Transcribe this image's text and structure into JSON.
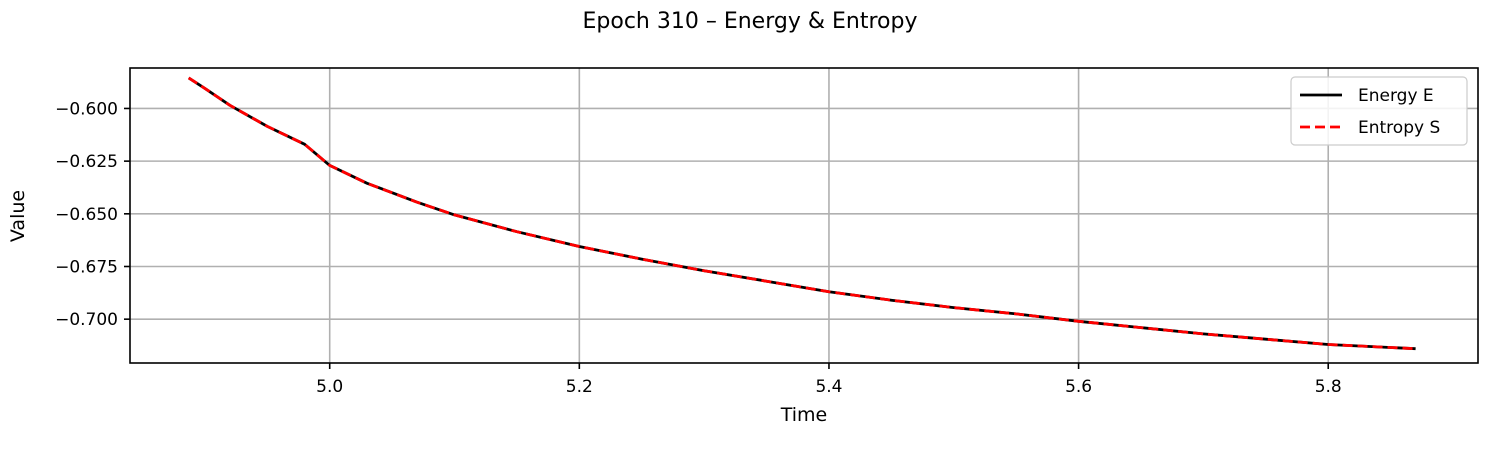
{
  "chart_data": {
    "type": "line",
    "title": "Epoch 310 – Energy & Entropy",
    "xlabel": "Time",
    "ylabel": "Value",
    "xlim": [
      4.84,
      5.92
    ],
    "ylim": [
      -0.7208,
      -0.5808
    ],
    "x_ticks": [
      5.0,
      5.2,
      5.4,
      5.6,
      5.8
    ],
    "x_tick_labels": [
      "5.0",
      "5.2",
      "5.4",
      "5.6",
      "5.8"
    ],
    "y_ticks": [
      -0.6,
      -0.625,
      -0.65,
      -0.675,
      -0.7
    ],
    "y_tick_labels": [
      "−0.600",
      "−0.625",
      "−0.650",
      "−0.675",
      "−0.700"
    ],
    "grid": true,
    "legend_position": "top-right",
    "x": [
      4.887,
      4.9,
      4.92,
      4.95,
      4.98,
      5.0,
      5.03,
      5.07,
      5.1,
      5.15,
      5.2,
      5.25,
      5.3,
      5.35,
      5.4,
      5.45,
      5.5,
      5.55,
      5.6,
      5.65,
      5.7,
      5.75,
      5.8,
      5.87
    ],
    "series": [
      {
        "name": "Energy E",
        "color": "#000000",
        "style": "solid",
        "values": [
          -0.5855,
          -0.5905,
          -0.5985,
          -0.6085,
          -0.617,
          -0.627,
          -0.6355,
          -0.6445,
          -0.6505,
          -0.6585,
          -0.6655,
          -0.6715,
          -0.677,
          -0.682,
          -0.687,
          -0.691,
          -0.6945,
          -0.6975,
          -0.701,
          -0.704,
          -0.707,
          -0.7095,
          -0.712,
          -0.714
        ]
      },
      {
        "name": "Entropy S",
        "color": "#ff0000",
        "style": "dashed",
        "values": [
          -0.5855,
          -0.5905,
          -0.5985,
          -0.6085,
          -0.617,
          -0.627,
          -0.6355,
          -0.6445,
          -0.6505,
          -0.6585,
          -0.6655,
          -0.6715,
          -0.677,
          -0.682,
          -0.687,
          -0.691,
          -0.6945,
          -0.6975,
          -0.701,
          -0.704,
          -0.707,
          -0.7095,
          -0.712,
          -0.714
        ]
      }
    ]
  }
}
